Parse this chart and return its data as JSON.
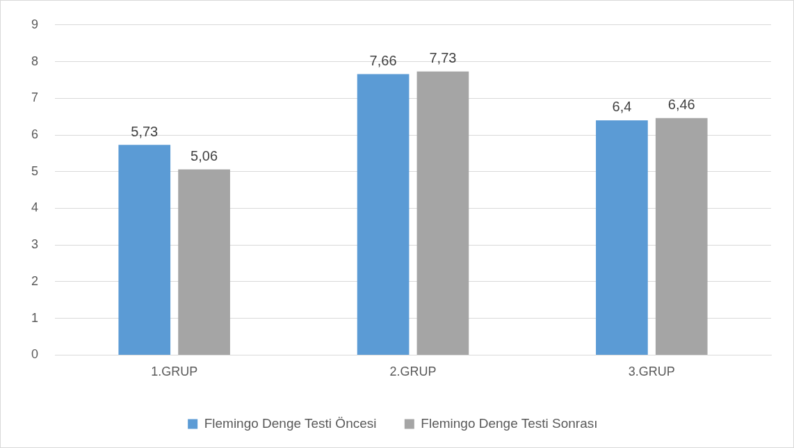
{
  "chart_data": {
    "type": "bar",
    "categories": [
      "1.GRUP",
      "2.GRUP",
      "3.GRUP"
    ],
    "series": [
      {
        "name": "Flemingo Denge Testi Öncesi",
        "color": "#5b9bd5",
        "values": [
          5.73,
          7.66,
          6.4
        ],
        "value_labels": [
          "5,73",
          "7,66",
          "6,4"
        ]
      },
      {
        "name": "Flemingo Denge Testi Sonrası",
        "color": "#a5a5a5",
        "values": [
          5.06,
          7.73,
          6.46
        ],
        "value_labels": [
          "5,06",
          "7,73",
          "6,46"
        ]
      }
    ],
    "ylim": [
      0,
      9
    ],
    "yticks": [
      0,
      1,
      2,
      3,
      4,
      5,
      6,
      7,
      8,
      9
    ],
    "grid": "y",
    "legend": "bottom"
  }
}
